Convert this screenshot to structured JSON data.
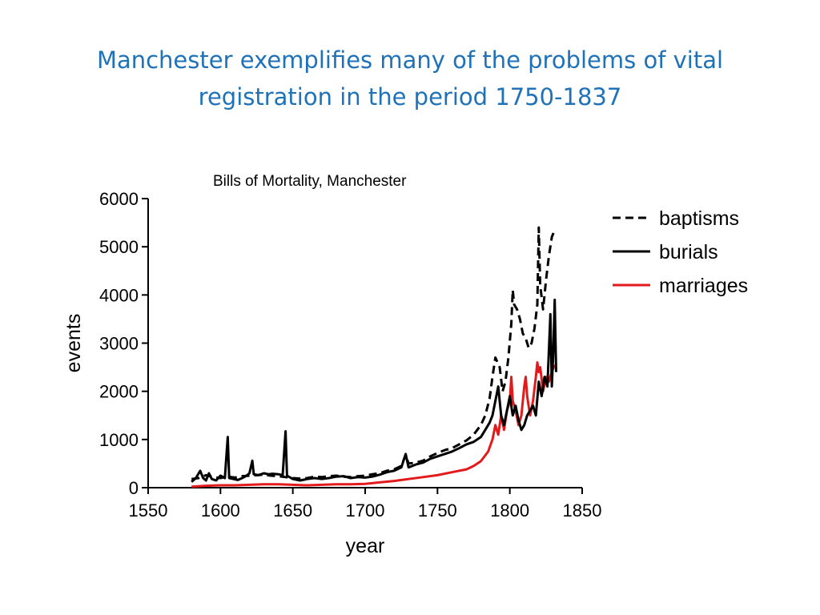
{
  "slide": {
    "title_line1": "Manchester exemplifies many of the problems of vital",
    "title_line2": "registration in the period 1750-1837",
    "title_color": "#1f72b8"
  },
  "chart_data": {
    "type": "line",
    "title": "Bills of Mortality, Manchester",
    "xlabel": "year",
    "ylabel": "events",
    "xlim": [
      1550,
      1850
    ],
    "ylim": [
      0,
      6000
    ],
    "xticks": [
      1550,
      1600,
      1650,
      1700,
      1750,
      1800,
      1850
    ],
    "yticks": [
      0,
      1000,
      2000,
      3000,
      4000,
      5000,
      6000
    ],
    "grid": false,
    "legend_position": "top-right",
    "series": [
      {
        "name": "baptisms",
        "color": "#000000",
        "style": "dashed",
        "points": [
          [
            1580,
            180
          ],
          [
            1585,
            200
          ],
          [
            1590,
            260
          ],
          [
            1595,
            220
          ],
          [
            1600,
            200
          ],
          [
            1605,
            230
          ],
          [
            1610,
            210
          ],
          [
            1615,
            240
          ],
          [
            1620,
            250
          ],
          [
            1625,
            260
          ],
          [
            1630,
            270
          ],
          [
            1635,
            250
          ],
          [
            1640,
            240
          ],
          [
            1645,
            220
          ],
          [
            1650,
            200
          ],
          [
            1655,
            190
          ],
          [
            1660,
            200
          ],
          [
            1665,
            230
          ],
          [
            1670,
            220
          ],
          [
            1675,
            240
          ],
          [
            1680,
            250
          ],
          [
            1685,
            230
          ],
          [
            1690,
            220
          ],
          [
            1695,
            240
          ],
          [
            1700,
            250
          ],
          [
            1705,
            280
          ],
          [
            1710,
            300
          ],
          [
            1715,
            350
          ],
          [
            1720,
            380
          ],
          [
            1725,
            450
          ],
          [
            1728,
            680
          ],
          [
            1730,
            500
          ],
          [
            1735,
            520
          ],
          [
            1740,
            560
          ],
          [
            1745,
            650
          ],
          [
            1750,
            720
          ],
          [
            1755,
            780
          ],
          [
            1760,
            820
          ],
          [
            1765,
            900
          ],
          [
            1770,
            980
          ],
          [
            1775,
            1100
          ],
          [
            1780,
            1300
          ],
          [
            1783,
            1500
          ],
          [
            1786,
            1850
          ],
          [
            1788,
            2300
          ],
          [
            1790,
            2700
          ],
          [
            1793,
            2500
          ],
          [
            1795,
            2000
          ],
          [
            1797,
            2200
          ],
          [
            1799,
            2700
          ],
          [
            1801,
            3400
          ],
          [
            1802,
            4100
          ],
          [
            1803,
            3800
          ],
          [
            1805,
            3700
          ],
          [
            1807,
            3500
          ],
          [
            1809,
            3200
          ],
          [
            1811,
            3100
          ],
          [
            1813,
            2900
          ],
          [
            1815,
            3000
          ],
          [
            1817,
            3300
          ],
          [
            1819,
            3800
          ],
          [
            1820,
            5400
          ],
          [
            1821,
            4200
          ],
          [
            1823,
            3700
          ],
          [
            1825,
            4300
          ],
          [
            1827,
            4800
          ],
          [
            1829,
            5200
          ],
          [
            1831,
            5350
          ]
        ]
      },
      {
        "name": "burials",
        "color": "#000000",
        "style": "solid",
        "points": [
          [
            1580,
            120
          ],
          [
            1583,
            200
          ],
          [
            1586,
            350
          ],
          [
            1588,
            200
          ],
          [
            1590,
            150
          ],
          [
            1592,
            300
          ],
          [
            1594,
            180
          ],
          [
            1597,
            150
          ],
          [
            1600,
            250
          ],
          [
            1603,
            200
          ],
          [
            1605,
            1050
          ],
          [
            1606,
            200
          ],
          [
            1609,
            180
          ],
          [
            1612,
            160
          ],
          [
            1615,
            200
          ],
          [
            1618,
            250
          ],
          [
            1620,
            300
          ],
          [
            1622,
            560
          ],
          [
            1623,
            280
          ],
          [
            1626,
            260
          ],
          [
            1630,
            300
          ],
          [
            1633,
            280
          ],
          [
            1636,
            290
          ],
          [
            1640,
            280
          ],
          [
            1643,
            260
          ],
          [
            1645,
            1170
          ],
          [
            1646,
            250
          ],
          [
            1650,
            180
          ],
          [
            1655,
            150
          ],
          [
            1660,
            180
          ],
          [
            1665,
            200
          ],
          [
            1670,
            180
          ],
          [
            1675,
            200
          ],
          [
            1680,
            230
          ],
          [
            1685,
            240
          ],
          [
            1690,
            200
          ],
          [
            1695,
            220
          ],
          [
            1700,
            210
          ],
          [
            1705,
            230
          ],
          [
            1710,
            270
          ],
          [
            1715,
            320
          ],
          [
            1720,
            350
          ],
          [
            1725,
            420
          ],
          [
            1728,
            700
          ],
          [
            1730,
            420
          ],
          [
            1735,
            480
          ],
          [
            1740,
            520
          ],
          [
            1745,
            600
          ],
          [
            1750,
            650
          ],
          [
            1755,
            700
          ],
          [
            1760,
            750
          ],
          [
            1765,
            820
          ],
          [
            1770,
            900
          ],
          [
            1775,
            950
          ],
          [
            1780,
            1050
          ],
          [
            1783,
            1200
          ],
          [
            1786,
            1350
          ],
          [
            1788,
            1500
          ],
          [
            1790,
            1800
          ],
          [
            1792,
            2100
          ],
          [
            1794,
            1500
          ],
          [
            1796,
            1300
          ],
          [
            1798,
            1600
          ],
          [
            1800,
            1900
          ],
          [
            1802,
            1500
          ],
          [
            1804,
            1700
          ],
          [
            1806,
            1400
          ],
          [
            1808,
            1200
          ],
          [
            1810,
            1300
          ],
          [
            1812,
            1500
          ],
          [
            1814,
            1600
          ],
          [
            1816,
            1700
          ],
          [
            1818,
            1500
          ],
          [
            1820,
            2200
          ],
          [
            1822,
            1900
          ],
          [
            1824,
            2300
          ],
          [
            1826,
            2100
          ],
          [
            1828,
            3600
          ],
          [
            1829,
            2100
          ],
          [
            1830,
            2800
          ],
          [
            1831,
            3900
          ],
          [
            1832,
            2400
          ]
        ]
      },
      {
        "name": "marriages",
        "color": "#e31a1c",
        "style": "solid",
        "points": [
          [
            1580,
            20
          ],
          [
            1590,
            40
          ],
          [
            1600,
            50
          ],
          [
            1610,
            50
          ],
          [
            1620,
            60
          ],
          [
            1630,
            70
          ],
          [
            1640,
            70
          ],
          [
            1650,
            60
          ],
          [
            1660,
            50
          ],
          [
            1670,
            60
          ],
          [
            1680,
            70
          ],
          [
            1690,
            70
          ],
          [
            1700,
            80
          ],
          [
            1710,
            110
          ],
          [
            1720,
            140
          ],
          [
            1730,
            180
          ],
          [
            1740,
            220
          ],
          [
            1750,
            260
          ],
          [
            1760,
            320
          ],
          [
            1770,
            380
          ],
          [
            1775,
            450
          ],
          [
            1780,
            550
          ],
          [
            1785,
            750
          ],
          [
            1788,
            1000
          ],
          [
            1790,
            1300
          ],
          [
            1792,
            1100
          ],
          [
            1794,
            1500
          ],
          [
            1796,
            1200
          ],
          [
            1798,
            1600
          ],
          [
            1800,
            1800
          ],
          [
            1801,
            2300
          ],
          [
            1802,
            1800
          ],
          [
            1804,
            1600
          ],
          [
            1806,
            1300
          ],
          [
            1808,
            1500
          ],
          [
            1810,
            2100
          ],
          [
            1811,
            2300
          ],
          [
            1812,
            1900
          ],
          [
            1814,
            1500
          ],
          [
            1816,
            1800
          ],
          [
            1818,
            2300
          ],
          [
            1819,
            2600
          ],
          [
            1820,
            2400
          ],
          [
            1821,
            2500
          ],
          [
            1823,
            2000
          ],
          [
            1825,
            2300
          ],
          [
            1827,
            2200
          ],
          [
            1829,
            2400
          ],
          [
            1831,
            2550
          ]
        ]
      }
    ]
  }
}
